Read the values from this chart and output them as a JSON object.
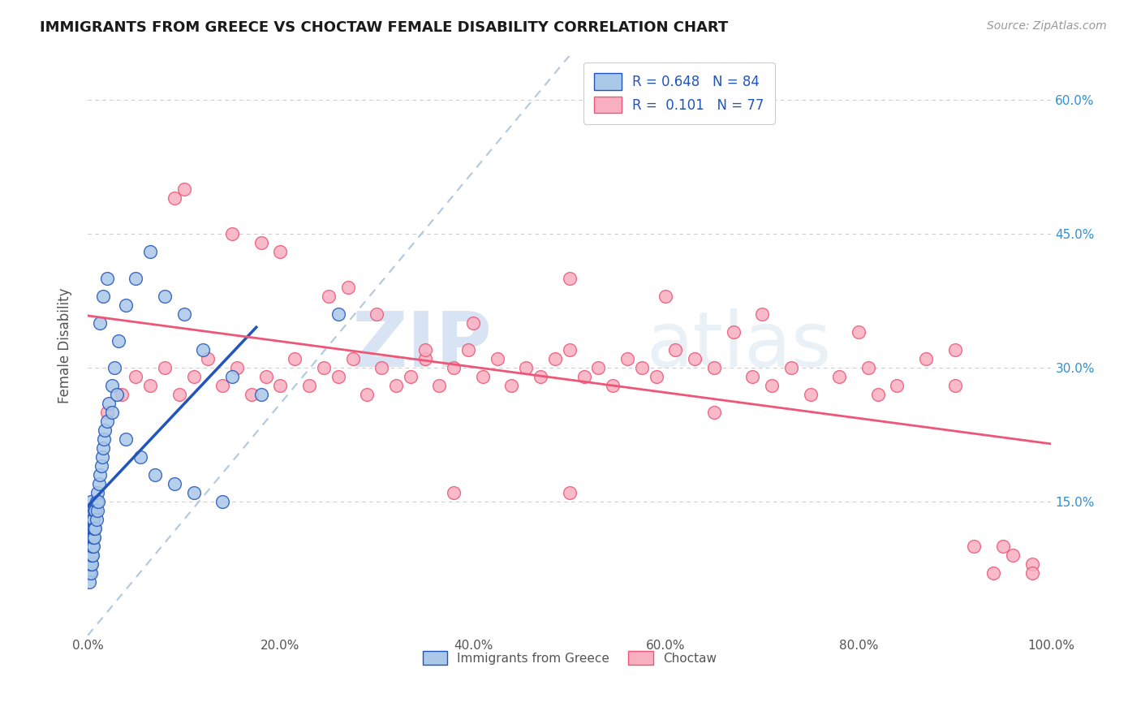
{
  "title": "IMMIGRANTS FROM GREECE VS CHOCTAW FEMALE DISABILITY CORRELATION CHART",
  "source": "Source: ZipAtlas.com",
  "ylabel": "Female Disability",
  "legend_labels": [
    "Immigrants from Greece",
    "Choctaw"
  ],
  "r1": 0.648,
  "n1": 84,
  "r2": 0.101,
  "n2": 77,
  "color_blue": "#aac8e8",
  "color_pink": "#f8b0c0",
  "line_blue": "#2255bb",
  "line_pink": "#ee5577",
  "line_dashed_color": "#b0c8e0",
  "xlim": [
    0.0,
    1.0
  ],
  "ylim": [
    0.0,
    0.65
  ],
  "xtick_labels": [
    "0.0%",
    "20.0%",
    "40.0%",
    "60.0%",
    "80.0%",
    "100.0%"
  ],
  "xtick_vals": [
    0.0,
    0.2,
    0.4,
    0.6,
    0.8,
    1.0
  ],
  "ytick_labels": [
    "15.0%",
    "30.0%",
    "45.0%",
    "60.0%"
  ],
  "ytick_vals": [
    0.15,
    0.3,
    0.45,
    0.6
  ],
  "watermark_zip": "ZIP",
  "watermark_atlas": "atlas",
  "blue_scatter_x": [
    0.001,
    0.001,
    0.001,
    0.001,
    0.001,
    0.001,
    0.001,
    0.001,
    0.002,
    0.002,
    0.002,
    0.002,
    0.002,
    0.002,
    0.002,
    0.002,
    0.002,
    0.003,
    0.003,
    0.003,
    0.003,
    0.003,
    0.003,
    0.003,
    0.003,
    0.003,
    0.004,
    0.004,
    0.004,
    0.004,
    0.004,
    0.004,
    0.004,
    0.005,
    0.005,
    0.005,
    0.005,
    0.005,
    0.006,
    0.006,
    0.006,
    0.006,
    0.007,
    0.007,
    0.007,
    0.008,
    0.008,
    0.009,
    0.009,
    0.01,
    0.01,
    0.011,
    0.012,
    0.013,
    0.014,
    0.015,
    0.016,
    0.017,
    0.018,
    0.02,
    0.022,
    0.025,
    0.028,
    0.032,
    0.04,
    0.05,
    0.065,
    0.08,
    0.1,
    0.12,
    0.15,
    0.18,
    0.013,
    0.016,
    0.02,
    0.025,
    0.03,
    0.04,
    0.055,
    0.07,
    0.09,
    0.11,
    0.14,
    0.26
  ],
  "blue_scatter_y": [
    0.08,
    0.09,
    0.1,
    0.11,
    0.12,
    0.13,
    0.14,
    0.07,
    0.07,
    0.08,
    0.09,
    0.1,
    0.11,
    0.12,
    0.13,
    0.14,
    0.06,
    0.07,
    0.08,
    0.09,
    0.1,
    0.11,
    0.12,
    0.13,
    0.14,
    0.15,
    0.08,
    0.09,
    0.1,
    0.11,
    0.12,
    0.13,
    0.14,
    0.09,
    0.1,
    0.11,
    0.12,
    0.13,
    0.1,
    0.11,
    0.12,
    0.13,
    0.11,
    0.12,
    0.14,
    0.12,
    0.14,
    0.13,
    0.15,
    0.14,
    0.16,
    0.15,
    0.17,
    0.18,
    0.19,
    0.2,
    0.21,
    0.22,
    0.23,
    0.24,
    0.26,
    0.28,
    0.3,
    0.33,
    0.37,
    0.4,
    0.43,
    0.38,
    0.36,
    0.32,
    0.29,
    0.27,
    0.35,
    0.38,
    0.4,
    0.25,
    0.27,
    0.22,
    0.2,
    0.18,
    0.17,
    0.16,
    0.15,
    0.36
  ],
  "pink_scatter_x": [
    0.02,
    0.035,
    0.05,
    0.065,
    0.08,
    0.095,
    0.11,
    0.125,
    0.14,
    0.155,
    0.17,
    0.185,
    0.2,
    0.215,
    0.23,
    0.245,
    0.26,
    0.275,
    0.29,
    0.305,
    0.32,
    0.335,
    0.35,
    0.365,
    0.38,
    0.395,
    0.41,
    0.425,
    0.44,
    0.455,
    0.47,
    0.485,
    0.5,
    0.515,
    0.53,
    0.545,
    0.56,
    0.575,
    0.59,
    0.61,
    0.63,
    0.65,
    0.67,
    0.69,
    0.71,
    0.73,
    0.75,
    0.78,
    0.81,
    0.84,
    0.87,
    0.9,
    0.92,
    0.94,
    0.96,
    0.98,
    0.1,
    0.15,
    0.2,
    0.25,
    0.3,
    0.35,
    0.4,
    0.5,
    0.6,
    0.7,
    0.8,
    0.9,
    0.95,
    0.98,
    0.09,
    0.18,
    0.27,
    0.38,
    0.5,
    0.65,
    0.82
  ],
  "pink_scatter_y": [
    0.25,
    0.27,
    0.29,
    0.28,
    0.3,
    0.27,
    0.29,
    0.31,
    0.28,
    0.3,
    0.27,
    0.29,
    0.28,
    0.31,
    0.28,
    0.3,
    0.29,
    0.31,
    0.27,
    0.3,
    0.28,
    0.29,
    0.31,
    0.28,
    0.3,
    0.32,
    0.29,
    0.31,
    0.28,
    0.3,
    0.29,
    0.31,
    0.32,
    0.29,
    0.3,
    0.28,
    0.31,
    0.3,
    0.29,
    0.32,
    0.31,
    0.3,
    0.34,
    0.29,
    0.28,
    0.3,
    0.27,
    0.29,
    0.3,
    0.28,
    0.31,
    0.28,
    0.1,
    0.07,
    0.09,
    0.08,
    0.5,
    0.45,
    0.43,
    0.38,
    0.36,
    0.32,
    0.35,
    0.4,
    0.38,
    0.36,
    0.34,
    0.32,
    0.1,
    0.07,
    0.49,
    0.44,
    0.39,
    0.16,
    0.16,
    0.25,
    0.27
  ]
}
